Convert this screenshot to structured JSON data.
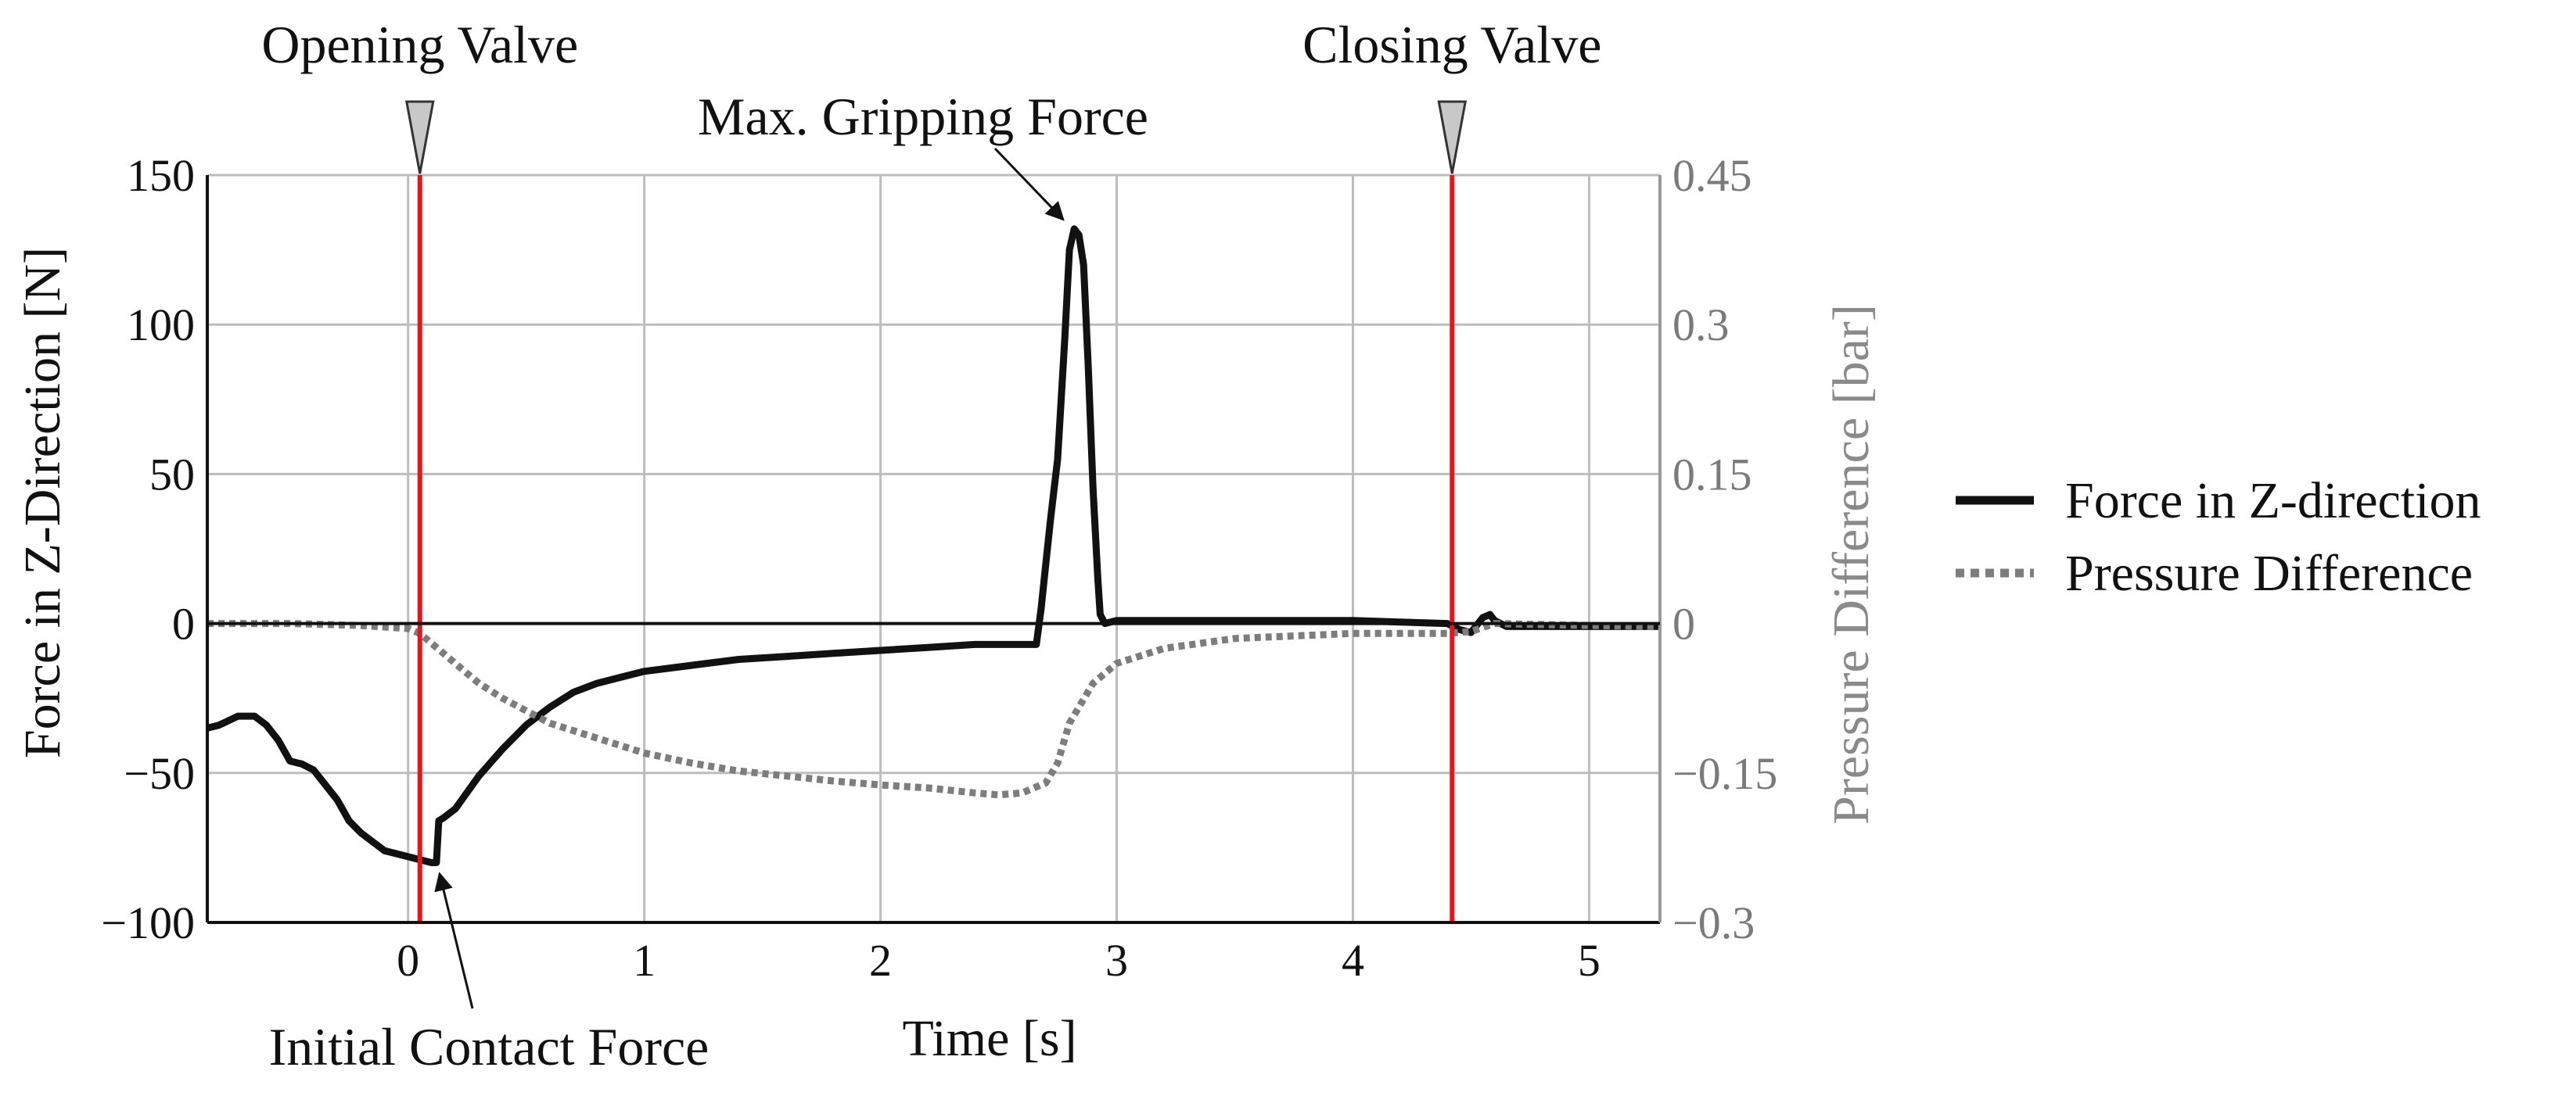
{
  "chart_data": {
    "type": "line",
    "xlabel": "Time [s]",
    "ylabel_left": "Force in Z-Direction [N]",
    "ylabel_right": "Pressure Difference [bar]",
    "xlim": [
      -0.85,
      5.3
    ],
    "ylim_left": [
      -100,
      150
    ],
    "ylim_right": [
      -0.3,
      0.45
    ],
    "x_ticks": [
      0,
      1,
      2,
      3,
      4,
      5
    ],
    "x_tick_labels": [
      "0",
      "1",
      "2",
      "3",
      "4",
      "5"
    ],
    "y_ticks_left": [
      -100,
      -50,
      0,
      50,
      100,
      150
    ],
    "y_tick_labels_left": [
      "−100",
      "−50",
      "0",
      "50",
      "100",
      "150"
    ],
    "y_ticks_right": [
      -0.3,
      -0.15,
      0,
      0.15,
      0.3,
      0.45
    ],
    "y_tick_labels_right": [
      "−0.3",
      "−0.15",
      "0",
      "0.15",
      "0.3",
      "0.45"
    ],
    "grid": true,
    "legend_position": "right",
    "colors": {
      "force": "#111111",
      "pressure": "#7d7d7d",
      "valve_line": "#e8141c",
      "grid": "#bdbdbd",
      "marker": "#c8c8c8"
    },
    "series": [
      {
        "name": "Force in Z-direction",
        "axis": "left",
        "style": "solid",
        "x": [
          -0.85,
          -0.8,
          -0.72,
          -0.65,
          -0.6,
          -0.55,
          -0.5,
          -0.45,
          -0.4,
          -0.35,
          -0.3,
          -0.25,
          -0.2,
          -0.15,
          -0.1,
          -0.05,
          0.0,
          0.05,
          0.1,
          0.12,
          0.13,
          0.15,
          0.2,
          0.3,
          0.4,
          0.5,
          0.6,
          0.7,
          0.8,
          0.9,
          1.0,
          1.2,
          1.4,
          1.6,
          1.8,
          2.0,
          2.2,
          2.4,
          2.6,
          2.66,
          2.68,
          2.7,
          2.72,
          2.75,
          2.78,
          2.8,
          2.82,
          2.84,
          2.86,
          2.88,
          2.9,
          2.92,
          2.93,
          2.95,
          3.0,
          3.5,
          4.0,
          4.4,
          4.45,
          4.5,
          4.55,
          4.58,
          4.6,
          4.65,
          4.7,
          5.0,
          5.3
        ],
        "y": [
          -35,
          -34,
          -31,
          -31,
          -34,
          -39,
          -46,
          -47,
          -49,
          -54,
          -59,
          -66,
          -70,
          -73,
          -76,
          -77,
          -78,
          -79,
          -80,
          -80,
          -66,
          -65,
          -62,
          -51,
          -42,
          -34,
          -28,
          -23,
          -20,
          -18,
          -16,
          -14,
          -12,
          -11,
          -10,
          -9,
          -8,
          -7,
          -7,
          -7,
          5,
          20,
          35,
          55,
          95,
          125,
          132,
          130,
          120,
          85,
          45,
          15,
          3,
          0,
          1,
          1,
          1,
          0,
          -2,
          -3,
          2,
          3,
          1,
          -1,
          -1,
          -1,
          -1
        ]
      },
      {
        "name": "Pressure Difference",
        "axis": "right",
        "style": "dotted",
        "x": [
          -0.85,
          -0.5,
          -0.2,
          0.0,
          0.05,
          0.1,
          0.2,
          0.3,
          0.4,
          0.6,
          0.8,
          1.0,
          1.2,
          1.4,
          1.6,
          1.8,
          2.0,
          2.2,
          2.4,
          2.5,
          2.6,
          2.7,
          2.75,
          2.8,
          2.85,
          2.9,
          3.0,
          3.2,
          3.5,
          4.0,
          4.4,
          4.5,
          4.6,
          5.0,
          5.3
        ],
        "y": [
          0.0,
          0.0,
          -0.002,
          -0.005,
          -0.01,
          -0.02,
          -0.04,
          -0.06,
          -0.075,
          -0.1,
          -0.115,
          -0.13,
          -0.14,
          -0.148,
          -0.153,
          -0.158,
          -0.162,
          -0.165,
          -0.17,
          -0.172,
          -0.17,
          -0.16,
          -0.14,
          -0.1,
          -0.08,
          -0.06,
          -0.04,
          -0.025,
          -0.015,
          -0.01,
          -0.01,
          -0.008,
          0.0,
          -0.002,
          -0.003
        ]
      }
    ],
    "event_lines": [
      {
        "label": "Opening Valve",
        "x": 0.05
      },
      {
        "label": "Closing Valve",
        "x": 4.42
      }
    ],
    "annotations": [
      {
        "text": "Max. Gripping Force",
        "target_x": 2.8,
        "target_y": 132
      },
      {
        "text": "Initial Contact Force",
        "target_x": 0.12,
        "target_y": -80
      }
    ],
    "zero_line": true
  }
}
